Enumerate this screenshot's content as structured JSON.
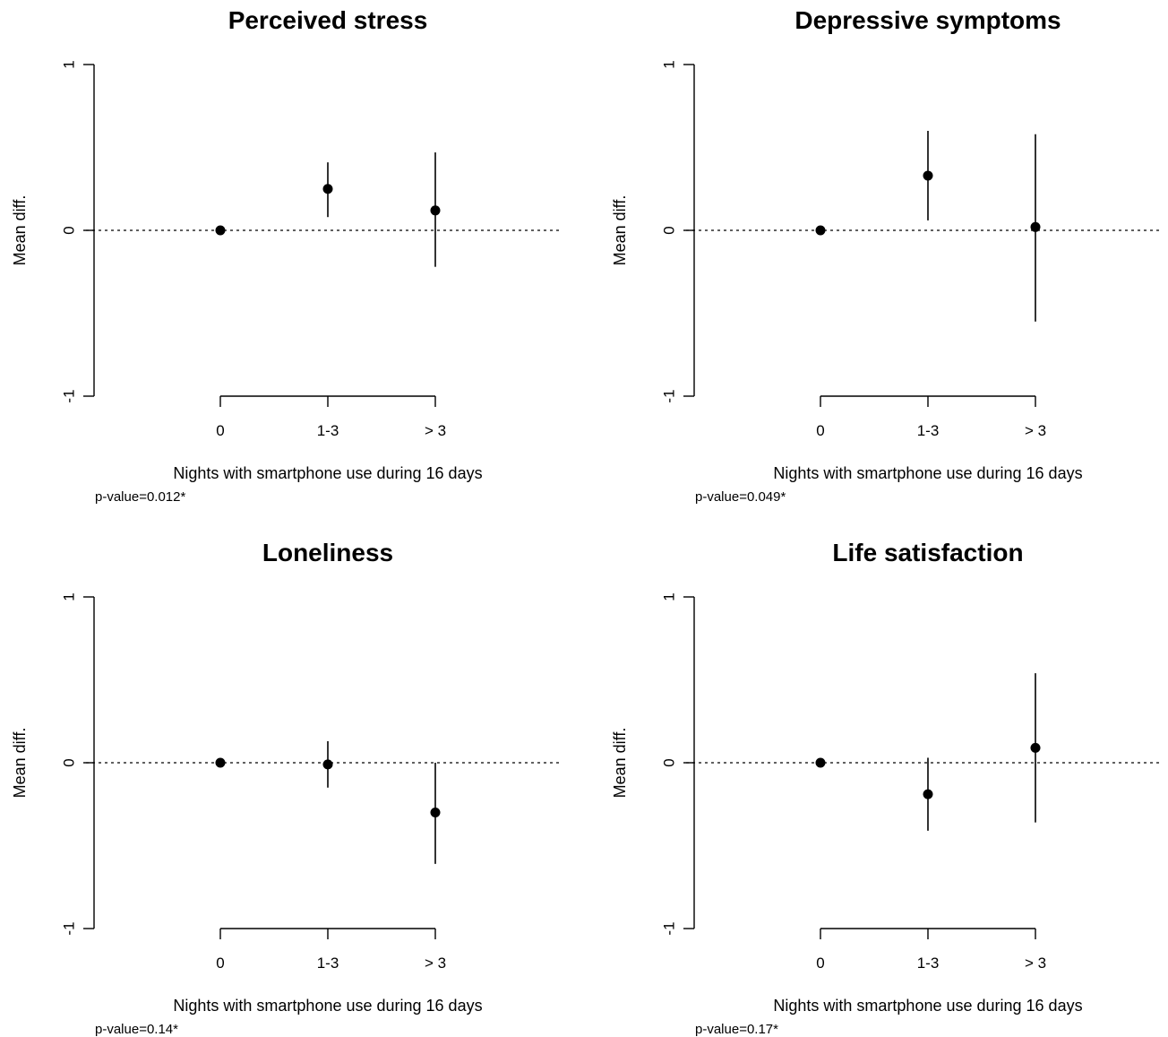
{
  "chart_data": [
    {
      "type": "scatter",
      "title": "Perceived stress",
      "xlabel": "Nights with smartphone use during 16 days",
      "ylabel": "Mean diff.",
      "categories": [
        "0",
        "1-3",
        "> 3"
      ],
      "estimates": [
        0,
        0.25,
        0.12
      ],
      "ci_lower": [
        0,
        0.08,
        -0.22
      ],
      "ci_upper": [
        0,
        0.41,
        0.47
      ],
      "ylim": [
        -1,
        1
      ],
      "yticks": [
        "-1",
        "0",
        "1"
      ],
      "reference_line": 0,
      "p_value": "p-value=0.012*"
    },
    {
      "type": "scatter",
      "title": "Depressive symptoms",
      "xlabel": "Nights with smartphone use during 16 days",
      "ylabel": "Mean diff.",
      "categories": [
        "0",
        "1-3",
        "> 3"
      ],
      "estimates": [
        0,
        0.33,
        0.02
      ],
      "ci_lower": [
        0,
        0.06,
        -0.55
      ],
      "ci_upper": [
        0,
        0.6,
        0.58
      ],
      "ylim": [
        -1,
        1
      ],
      "yticks": [
        "-1",
        "0",
        "1"
      ],
      "reference_line": 0,
      "p_value": "p-value=0.049*"
    },
    {
      "type": "scatter",
      "title": "Loneliness",
      "xlabel": "Nights with smartphone use during 16 days",
      "ylabel": "Mean diff.",
      "categories": [
        "0",
        "1-3",
        "> 3"
      ],
      "estimates": [
        0,
        -0.01,
        -0.3
      ],
      "ci_lower": [
        0,
        -0.15,
        -0.61
      ],
      "ci_upper": [
        0,
        0.13,
        0
      ],
      "ylim": [
        -1,
        1
      ],
      "yticks": [
        "-1",
        "0",
        "1"
      ],
      "reference_line": 0,
      "p_value": "p-value=0.14*"
    },
    {
      "type": "scatter",
      "title": "Life satisfaction",
      "xlabel": "Nights with smartphone use during 16 days",
      "ylabel": "Mean diff.",
      "categories": [
        "0",
        "1-3",
        "> 3"
      ],
      "estimates": [
        0,
        -0.19,
        0.09
      ],
      "ci_lower": [
        0,
        -0.41,
        -0.36
      ],
      "ci_upper": [
        0,
        0.03,
        0.54
      ],
      "ylim": [
        -1,
        1
      ],
      "yticks": [
        "-1",
        "0",
        "1"
      ],
      "reference_line": 0,
      "p_value": "p-value=0.17*"
    }
  ]
}
